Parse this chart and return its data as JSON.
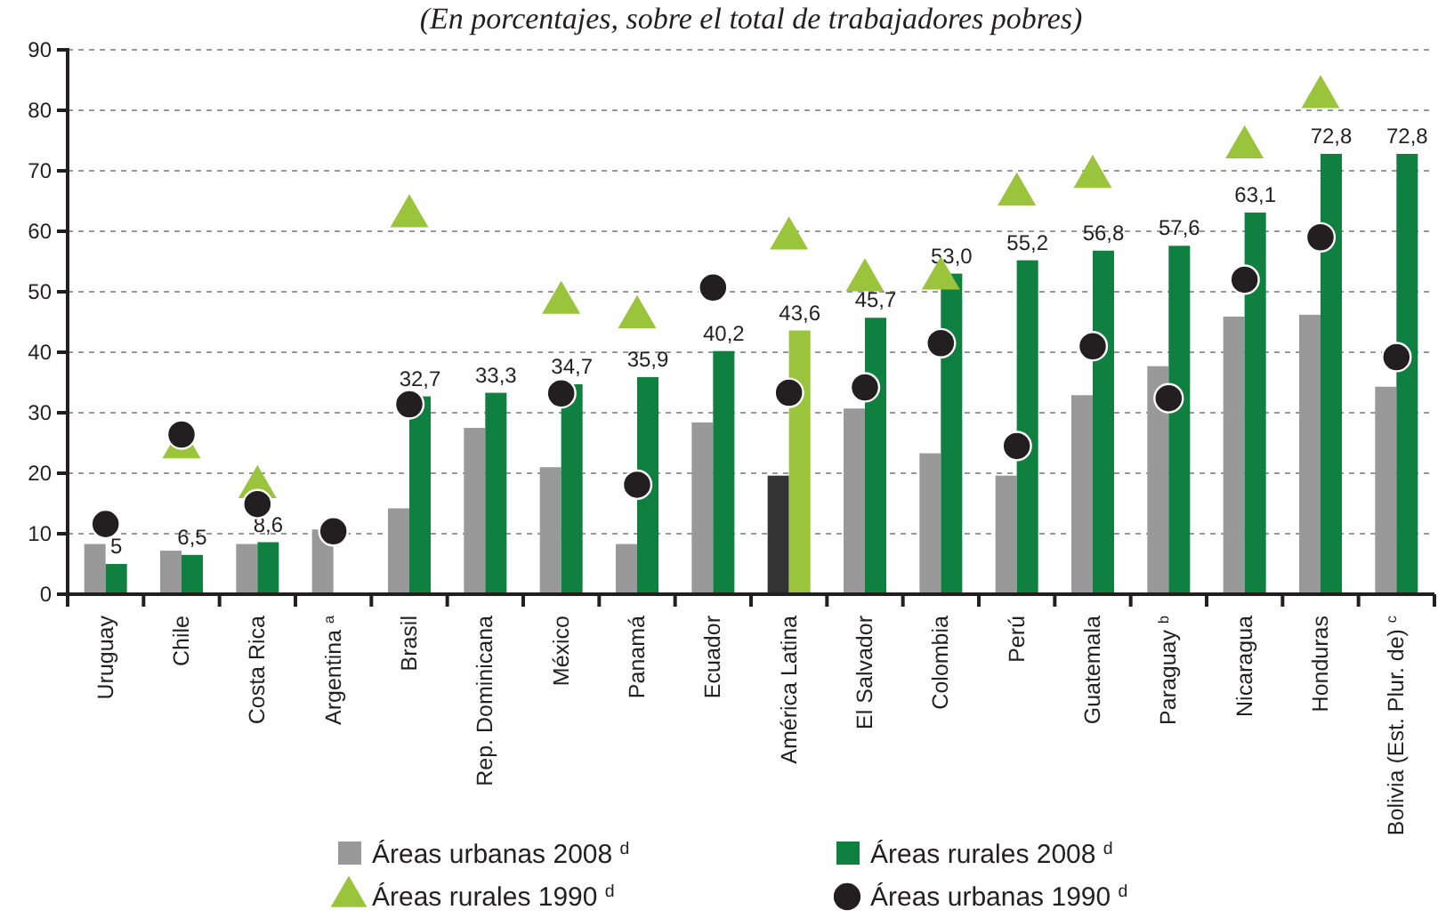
{
  "chart_data": {
    "type": "bar",
    "subtitle": "(En porcentajes, sobre el total de trabajadores pobres)",
    "categories": [
      "Uruguay",
      "Chile",
      "Costa Rica",
      "Argentina $^{a}$",
      "Brasil",
      "Rep. Dominicana",
      "México",
      "Panamá",
      "Ecuador",
      "América Latina",
      "El Salvador",
      "Colombia",
      "Perú",
      "Guatemala",
      "Paraguay $^{b}$",
      "Nicaragua",
      "Honduras",
      "Bolivia (Est. Plur. de) $^{c}$"
    ],
    "series": [
      {
        "name": "Áreas urbanas 2008 $^{d}$",
        "color": "#999999",
        "colors": [
          "#999999",
          "#999999",
          "#999999",
          "#999999",
          "#999999",
          "#999999",
          "#999999",
          "#999999",
          "#999999",
          "#333333",
          "#999999",
          "#999999",
          "#999999",
          "#999999",
          "#999999",
          "#999999",
          "#999999",
          "#999999"
        ],
        "values": [
          8.3,
          7.2,
          8.3,
          10.7,
          14.2,
          27.5,
          21.0,
          8.3,
          28.4,
          19.6,
          30.7,
          23.3,
          19.6,
          32.9,
          37.7,
          45.9,
          46.2,
          34.3
        ]
      },
      {
        "name": "Áreas rurales 2008 $^{d}$",
        "color": "#0f8040",
        "colors": [
          "#0f8040",
          "#0f8040",
          "#0f8040",
          "#0f8040",
          "#0f8040",
          "#0f8040",
          "#0f8040",
          "#0f8040",
          "#0f8040",
          "#99c43c",
          "#0f8040",
          "#0f8040",
          "#0f8040",
          "#0f8040",
          "#0f8040",
          "#0f8040",
          "#0f8040",
          "#0f8040"
        ],
        "values": [
          5,
          6.5,
          8.6,
          null,
          32.7,
          33.3,
          34.7,
          35.9,
          40.2,
          43.6,
          45.7,
          53.0,
          55.2,
          56.8,
          57.6,
          63.1,
          72.8,
          72.8
        ],
        "value_labels": [
          "5",
          "6,5",
          "8,6",
          null,
          "32,7",
          "33,3",
          "34,7",
          "35,9",
          "40,2",
          "43,6",
          "45,7",
          "53,0",
          "55,2",
          "56,8",
          "57,6",
          "63,1",
          "72,8",
          "72,8"
        ]
      },
      {
        "name": "Áreas rurales 1990 $^{d}$",
        "type": "scatter",
        "marker": "triangle",
        "color": "#99c43c",
        "values": [
          null,
          24.3,
          17.7,
          null,
          62.5,
          null,
          48.2,
          45.8,
          null,
          58.8,
          51.9,
          52.2,
          66.1,
          69.0,
          null,
          73.9,
          82.2,
          null
        ]
      },
      {
        "name": "Áreas urbanas 1990 $^{d}$",
        "type": "scatter",
        "marker": "circle",
        "color": "#231f20",
        "values": [
          11.6,
          26.4,
          14.9,
          10.4,
          31.4,
          null,
          33.2,
          18.1,
          50.7,
          33.3,
          34.2,
          41.5,
          24.5,
          41.0,
          32.4,
          52.0,
          59.0,
          39.2
        ]
      }
    ],
    "ylim": [
      0,
      90
    ],
    "yticks": [
      0,
      10,
      20,
      30,
      40,
      50,
      60,
      70,
      80,
      90
    ],
    "grid": "y",
    "legend": "bottom"
  }
}
